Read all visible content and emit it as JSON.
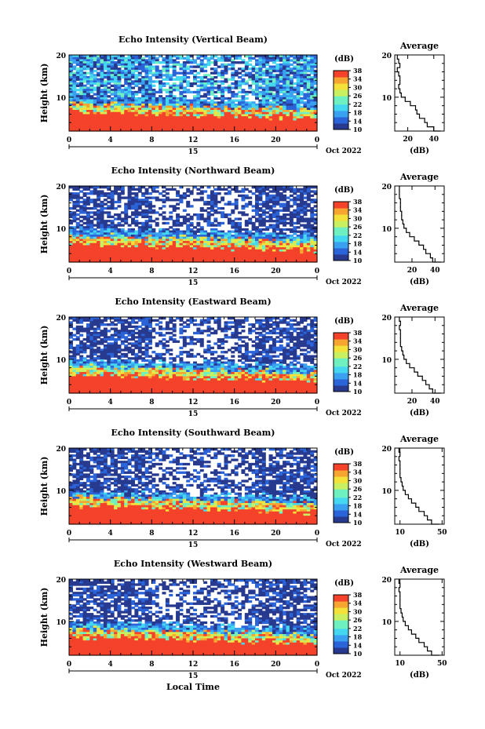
{
  "chart_data": [
    {
      "type": "heatmap",
      "title": "Echo Intensity (Vertical Beam)",
      "ylabel": "Height (km)",
      "x_ticks": [
        "0",
        "4",
        "8",
        "12",
        "16",
        "20",
        "0"
      ],
      "y_ticks": [
        "20",
        "10"
      ],
      "xlim": [
        0,
        24
      ],
      "ylim": [
        2,
        20
      ],
      "date_label": "Oct 2022",
      "day_marker": "15",
      "colorbar": {
        "unit": "(dB)",
        "ticks": [
          "38",
          "34",
          "30",
          "26",
          "22",
          "18",
          "14",
          "10"
        ],
        "range": [
          10,
          38
        ]
      },
      "height_profile": [
        {
          "h": 2.0,
          "v": 45
        },
        {
          "h": 3.0,
          "v": 40
        },
        {
          "h": 4.0,
          "v": 35
        },
        {
          "h": 5.0,
          "v": 33
        },
        {
          "h": 6.0,
          "v": 29
        },
        {
          "h": 7.0,
          "v": 27
        },
        {
          "h": 8.0,
          "v": 26
        },
        {
          "h": 9.0,
          "v": 22
        },
        {
          "h": 10.0,
          "v": 18
        },
        {
          "h": 11.0,
          "v": 15
        },
        {
          "h": 12.0,
          "v": 14
        },
        {
          "h": 13.0,
          "v": 13
        },
        {
          "h": 14.0,
          "v": 14
        },
        {
          "h": 15.0,
          "v": 14
        },
        {
          "h": 16.0,
          "v": 13
        },
        {
          "h": 17.0,
          "v": 12
        },
        {
          "h": 18.0,
          "v": 14
        },
        {
          "h": 19.0,
          "v": 13
        },
        {
          "h": 20.0,
          "v": 12
        }
      ],
      "profile_title": "Average",
      "profile_xlabel": "(dB)",
      "profile_x_ticks": [
        "20",
        "40"
      ],
      "profile_x_tick_values": [
        20,
        40
      ],
      "profile_xlim": [
        10,
        48
      ],
      "profile_y_ticks": [
        "20",
        "10"
      ],
      "profile_ylim": [
        2,
        20
      ],
      "xlabel": ""
    },
    {
      "type": "heatmap",
      "title": "Echo Intensity (Northward Beam)",
      "ylabel": "Height (km)",
      "x_ticks": [
        "0",
        "4",
        "8",
        "12",
        "16",
        "20",
        "0"
      ],
      "y_ticks": [
        "20",
        "10"
      ],
      "xlim": [
        0,
        24
      ],
      "ylim": [
        2,
        20
      ],
      "date_label": "Oct 2022",
      "day_marker": "15",
      "colorbar": {
        "unit": "(dB)",
        "ticks": [
          "38",
          "34",
          "30",
          "26",
          "22",
          "18",
          "14",
          "10"
        ],
        "range": [
          10,
          38
        ]
      },
      "height_profile": [
        {
          "h": 2.0,
          "v": 45
        },
        {
          "h": 3.0,
          "v": 38
        },
        {
          "h": 4.0,
          "v": 36
        },
        {
          "h": 5.0,
          "v": 32
        },
        {
          "h": 6.0,
          "v": 30
        },
        {
          "h": 7.0,
          "v": 26
        },
        {
          "h": 8.0,
          "v": 22
        },
        {
          "h": 9.0,
          "v": 18
        },
        {
          "h": 10.0,
          "v": 15
        },
        {
          "h": 11.0,
          "v": 13
        },
        {
          "h": 12.0,
          "v": 12
        },
        {
          "h": 13.0,
          "v": 11
        },
        {
          "h": 14.0,
          "v": 11
        },
        {
          "h": 15.0,
          "v": 10
        },
        {
          "h": 16.0,
          "v": 10
        },
        {
          "h": 17.0,
          "v": 10
        },
        {
          "h": 18.0,
          "v": 9
        },
        {
          "h": 19.0,
          "v": 9
        },
        {
          "h": 20.0,
          "v": 9
        }
      ],
      "profile_title": "Average",
      "profile_xlabel": "(dB)",
      "profile_x_ticks": [
        "20",
        "40"
      ],
      "profile_x_tick_values": [
        20,
        40
      ],
      "profile_xlim": [
        5,
        48
      ],
      "profile_y_ticks": [
        "20",
        "10"
      ],
      "profile_ylim": [
        2,
        20
      ],
      "xlabel": ""
    },
    {
      "type": "heatmap",
      "title": "Echo Intensity (Eastward Beam)",
      "ylabel": "Height (km)",
      "x_ticks": [
        "0",
        "4",
        "8",
        "12",
        "16",
        "20",
        "0"
      ],
      "y_ticks": [
        "20",
        "10"
      ],
      "xlim": [
        0,
        24
      ],
      "ylim": [
        2,
        20
      ],
      "date_label": "Oct 2022",
      "day_marker": "15",
      "colorbar": {
        "unit": "(dB)",
        "ticks": [
          "38",
          "34",
          "30",
          "26",
          "22",
          "18",
          "14",
          "10"
        ],
        "range": [
          10,
          38
        ]
      },
      "height_profile": [
        {
          "h": 2.0,
          "v": 45
        },
        {
          "h": 3.0,
          "v": 38
        },
        {
          "h": 4.0,
          "v": 35
        },
        {
          "h": 5.0,
          "v": 32
        },
        {
          "h": 6.0,
          "v": 29
        },
        {
          "h": 7.0,
          "v": 25
        },
        {
          "h": 8.0,
          "v": 22
        },
        {
          "h": 9.0,
          "v": 18
        },
        {
          "h": 10.0,
          "v": 15
        },
        {
          "h": 11.0,
          "v": 13
        },
        {
          "h": 12.0,
          "v": 12
        },
        {
          "h": 13.0,
          "v": 11
        },
        {
          "h": 14.0,
          "v": 10
        },
        {
          "h": 15.0,
          "v": 10
        },
        {
          "h": 16.0,
          "v": 10
        },
        {
          "h": 17.0,
          "v": 10
        },
        {
          "h": 18.0,
          "v": 9
        },
        {
          "h": 19.0,
          "v": 10
        },
        {
          "h": 20.0,
          "v": 9
        }
      ],
      "profile_title": "Average",
      "profile_xlabel": "(dB)",
      "profile_x_ticks": [
        "20",
        "40"
      ],
      "profile_x_tick_values": [
        20,
        40
      ],
      "profile_xlim": [
        5,
        48
      ],
      "profile_y_ticks": [
        "20",
        "10"
      ],
      "profile_ylim": [
        2,
        20
      ],
      "xlabel": ""
    },
    {
      "type": "heatmap",
      "title": "Echo Intensity (Southward Beam)",
      "ylabel": "Height (km)",
      "x_ticks": [
        "0",
        "4",
        "8",
        "12",
        "16",
        "20",
        "0"
      ],
      "y_ticks": [
        "20",
        "10"
      ],
      "xlim": [
        0,
        24
      ],
      "ylim": [
        2,
        20
      ],
      "date_label": "Oct 2022",
      "day_marker": "15",
      "colorbar": {
        "unit": "(dB)",
        "ticks": [
          "38",
          "34",
          "30",
          "26",
          "22",
          "18",
          "14",
          "10"
        ],
        "range": [
          10,
          38
        ]
      },
      "height_profile": [
        {
          "h": 2.0,
          "v": 47
        },
        {
          "h": 3.0,
          "v": 40
        },
        {
          "h": 4.0,
          "v": 36
        },
        {
          "h": 5.0,
          "v": 33
        },
        {
          "h": 6.0,
          "v": 28
        },
        {
          "h": 7.0,
          "v": 25
        },
        {
          "h": 8.0,
          "v": 21
        },
        {
          "h": 9.0,
          "v": 18
        },
        {
          "h": 10.0,
          "v": 15
        },
        {
          "h": 11.0,
          "v": 13
        },
        {
          "h": 12.0,
          "v": 12
        },
        {
          "h": 13.0,
          "v": 11
        },
        {
          "h": 14.0,
          "v": 10
        },
        {
          "h": 15.0,
          "v": 10
        },
        {
          "h": 16.0,
          "v": 10
        },
        {
          "h": 17.0,
          "v": 10
        },
        {
          "h": 18.0,
          "v": 9
        },
        {
          "h": 19.0,
          "v": 10
        },
        {
          "h": 20.0,
          "v": 9
        }
      ],
      "profile_title": "Average",
      "profile_xlabel": "(dB)",
      "profile_x_ticks": [
        "10",
        "50"
      ],
      "profile_x_tick_values": [
        10,
        50
      ],
      "profile_xlim": [
        5,
        52
      ],
      "profile_y_ticks": [
        "20",
        "10"
      ],
      "profile_ylim": [
        2,
        20
      ],
      "xlabel": ""
    },
    {
      "type": "heatmap",
      "title": "Echo Intensity (Westward Beam)",
      "ylabel": "Height (km)",
      "x_ticks": [
        "0",
        "4",
        "8",
        "12",
        "16",
        "20",
        "0"
      ],
      "y_ticks": [
        "20",
        "10"
      ],
      "xlim": [
        0,
        24
      ],
      "ylim": [
        2,
        20
      ],
      "date_label": "Oct 2022",
      "day_marker": "15",
      "colorbar": {
        "unit": "(dB)",
        "ticks": [
          "38",
          "34",
          "30",
          "26",
          "22",
          "18",
          "14",
          "10"
        ],
        "range": [
          10,
          38
        ]
      },
      "height_profile": [
        {
          "h": 2.0,
          "v": 47
        },
        {
          "h": 3.0,
          "v": 40
        },
        {
          "h": 4.0,
          "v": 36
        },
        {
          "h": 5.0,
          "v": 33
        },
        {
          "h": 6.0,
          "v": 28
        },
        {
          "h": 7.0,
          "v": 25
        },
        {
          "h": 8.0,
          "v": 21
        },
        {
          "h": 9.0,
          "v": 18
        },
        {
          "h": 10.0,
          "v": 15
        },
        {
          "h": 11.0,
          "v": 13
        },
        {
          "h": 12.0,
          "v": 12
        },
        {
          "h": 13.0,
          "v": 11
        },
        {
          "h": 14.0,
          "v": 10
        },
        {
          "h": 15.0,
          "v": 10
        },
        {
          "h": 16.0,
          "v": 10
        },
        {
          "h": 17.0,
          "v": 10
        },
        {
          "h": 18.0,
          "v": 9
        },
        {
          "h": 19.0,
          "v": 10
        },
        {
          "h": 20.0,
          "v": 9
        }
      ],
      "profile_title": "Average",
      "profile_xlabel": "(dB)",
      "profile_x_ticks": [
        "10",
        "50"
      ],
      "profile_x_tick_values": [
        10,
        50
      ],
      "profile_xlim": [
        5,
        52
      ],
      "profile_y_ticks": [
        "20",
        "10"
      ],
      "profile_ylim": [
        2,
        20
      ],
      "xlabel": "Local Time"
    }
  ],
  "colormap": [
    "#273a8f",
    "#2b64d8",
    "#3aa0f0",
    "#45d7f0",
    "#6ff0c0",
    "#c8f060",
    "#f4e23a",
    "#f6a531",
    "#f4422b"
  ]
}
